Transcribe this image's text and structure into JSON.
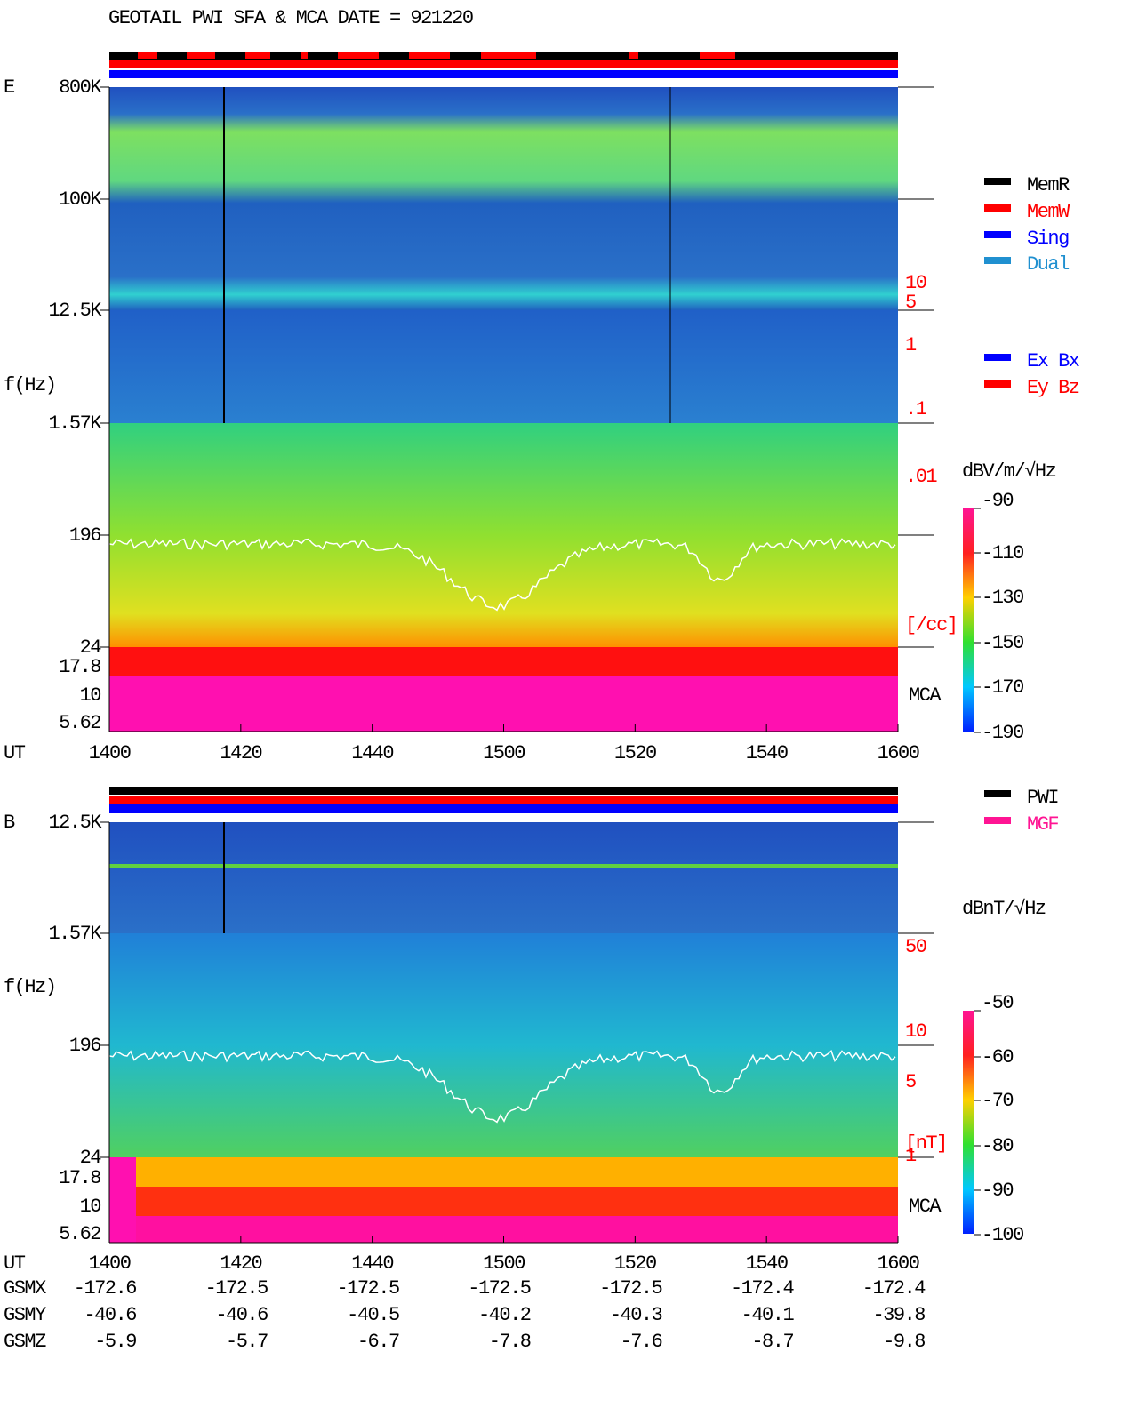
{
  "title": "GEOTAIL   PWI SFA & MCA   DATE = 921220",
  "panels": [
    {
      "label": "E",
      "y_axis_label": "f(Hz)",
      "freq_ticks": [
        "800K",
        "100K",
        "12.5K",
        "1.57K",
        "196",
        "24",
        "17.8",
        "10",
        "5.62"
      ],
      "right_ticks": [
        "10",
        "5",
        "1",
        ".1",
        ".01",
        "[/cc]"
      ],
      "mca_label": "MCA",
      "time_label": "UT",
      "time_ticks": [
        "1400",
        "1420",
        "1440",
        "1500",
        "1520",
        "1540",
        "1600"
      ],
      "legend": [
        "MemR",
        "MemW",
        "Sing",
        "Dual"
      ],
      "legend2": [
        "Ex Bx",
        "Ey Bz"
      ],
      "colorbar_title": "dBV/m/√Hz",
      "colorbar_ticks": [
        "-90",
        "-110",
        "-130",
        "-150",
        "-170",
        "-190"
      ]
    },
    {
      "label": "B",
      "y_axis_label": "f(Hz)",
      "freq_ticks": [
        "12.5K",
        "1.57K",
        "196",
        "24",
        "17.8",
        "10",
        "5.62"
      ],
      "right_ticks": [
        "50",
        "10",
        "5",
        "1",
        "[nT]"
      ],
      "mca_label": "MCA",
      "time_label": "UT",
      "time_ticks": [
        "1400",
        "1420",
        "1440",
        "1500",
        "1520",
        "1540",
        "1600"
      ],
      "legend": [
        "PWI",
        "MGF"
      ],
      "colorbar_title": "dBnT/√Hz",
      "colorbar_ticks": [
        "-50",
        "-60",
        "-70",
        "-80",
        "-90",
        "-100"
      ]
    }
  ],
  "orbit": [
    {
      "label": "GSMX",
      "values": [
        "-172.6",
        "-172.5",
        "-172.5",
        "-172.5",
        "-172.5",
        "-172.4",
        "-172.4"
      ]
    },
    {
      "label": "GSMY",
      "values": [
        "-40.6",
        "-40.6",
        "-40.5",
        "-40.2",
        "-40.3",
        "-40.1",
        "-39.8"
      ]
    },
    {
      "label": "GSMZ",
      "values": [
        "-5.9",
        "-5.7",
        "-6.7",
        "-7.8",
        "-7.6",
        "-8.7",
        "-9.8"
      ]
    }
  ]
}
